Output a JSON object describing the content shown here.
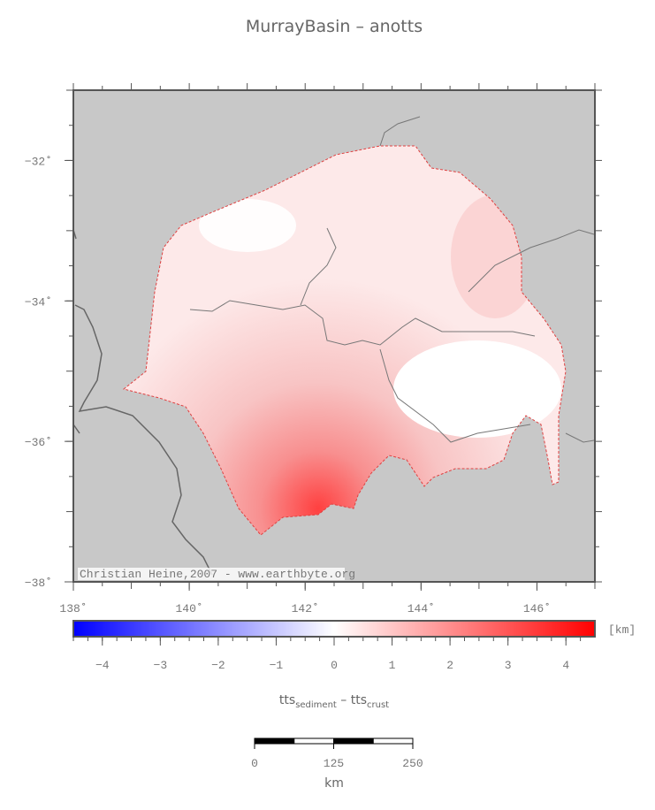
{
  "map": {
    "title": "MurrayBasin – anotts",
    "xlim": [
      138,
      147
    ],
    "ylim": [
      -38,
      -31
    ],
    "xticks": [
      {
        "value": 138,
        "label": "138˚"
      },
      {
        "value": 140,
        "label": "140˚"
      },
      {
        "value": 142,
        "label": "142˚"
      },
      {
        "value": 144,
        "label": "144˚"
      },
      {
        "value": 146,
        "label": "146˚"
      }
    ],
    "yticks": [
      {
        "value": -32,
        "label": "−32˚"
      },
      {
        "value": -34,
        "label": "−34˚"
      },
      {
        "value": -36,
        "label": "−36˚"
      },
      {
        "value": -38,
        "label": "−38˚"
      }
    ],
    "credit": "Christian Heine,2007 - www.earthbyte.org"
  },
  "colorbar": {
    "lim": [
      -4.5,
      4.5
    ],
    "ticks": [
      {
        "value": -4,
        "label": "−4"
      },
      {
        "value": -3,
        "label": "−3"
      },
      {
        "value": -2,
        "label": "−2"
      },
      {
        "value": -1,
        "label": "−1"
      },
      0,
      1,
      2,
      3,
      4
    ],
    "unit": "[km]",
    "label": {
      "main1": "tts",
      "sub1": "sediment",
      "main2": " – tts",
      "sub2": "crust"
    }
  },
  "scalebar": {
    "lim": [
      0,
      250
    ],
    "ticks": [
      0,
      125,
      250
    ],
    "unit": "km"
  }
}
